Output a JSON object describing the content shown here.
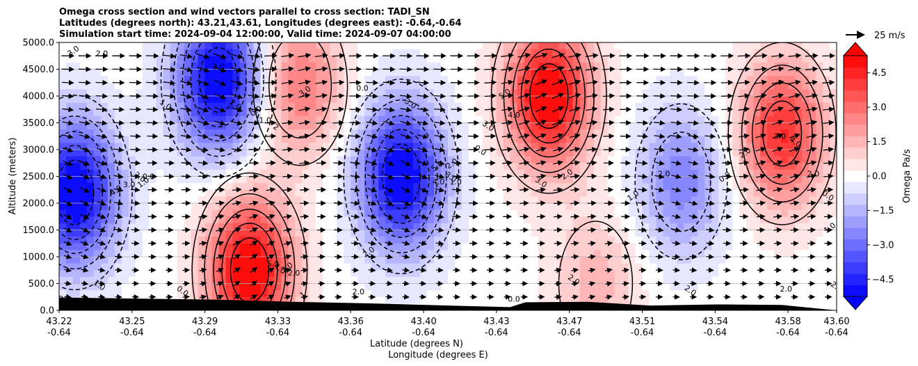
{
  "chart_data": {
    "type": "heatmap",
    "title_lines": [
      "Omega cross section and wind vectors parallel to cross section: TADI_SN",
      "Latitudes (degrees north): 43.21,43.61, Longitudes (degrees east): -0.64,-0.64",
      "Simulation start time: 2024-09-04 12:00:00, Valid time: 2024-09-07 04:00:00"
    ],
    "xlabel_lines": [
      "Latitude (degrees N)",
      "Longitude (degrees E)"
    ],
    "ylabel": "Altitude (meters)",
    "x_ticks": [
      {
        "lat": "43.22",
        "lon": "-0.64"
      },
      {
        "lat": "43.25",
        "lon": "-0.64"
      },
      {
        "lat": "43.29",
        "lon": "-0.64"
      },
      {
        "lat": "43.33",
        "lon": "-0.64"
      },
      {
        "lat": "43.36",
        "lon": "-0.64"
      },
      {
        "lat": "43.40",
        "lon": "-0.64"
      },
      {
        "lat": "43.43",
        "lon": "-0.64"
      },
      {
        "lat": "43.47",
        "lon": "-0.64"
      },
      {
        "lat": "43.51",
        "lon": "-0.64"
      },
      {
        "lat": "43.54",
        "lon": "-0.64"
      },
      {
        "lat": "43.58",
        "lon": "-0.64"
      },
      {
        "lat": "43.60",
        "lon": "-0.64"
      }
    ],
    "x_tick_fractions": [
      0,
      0.0938,
      0.1875,
      0.2813,
      0.375,
      0.4688,
      0.5625,
      0.6563,
      0.75,
      0.8438,
      0.9375,
      1.0
    ],
    "y_ticks": [
      "0.0",
      "500.0",
      "1000.0",
      "1500.0",
      "2000.0",
      "2500.0",
      "3000.0",
      "3500.0",
      "4000.0",
      "4500.0",
      "5000.0"
    ],
    "ylim": [
      0,
      5000
    ],
    "grid": "horizontal",
    "colorbar": {
      "label": "Omega Pa/s",
      "range": [
        -5.25,
        5.25
      ],
      "ticks": [
        "4.5",
        "3.0",
        "1.5",
        "0.0",
        "−1.5",
        "−3.0",
        "−4.5"
      ],
      "tick_values": [
        4.5,
        3.0,
        1.5,
        0.0,
        -1.5,
        -3.0,
        -4.5
      ],
      "extend": "both",
      "negative_color": "#0000ff",
      "positive_color": "#ff0000"
    },
    "quiver_key": {
      "label": "25 m/s",
      "speed_ms": 25
    },
    "omega_features": [
      {
        "sign": "negative",
        "center_frac": 0.02,
        "center_alt": 2200,
        "peak": -5.5
      },
      {
        "sign": "negative",
        "center_frac": 0.205,
        "center_alt": 4300,
        "peak": -5.5
      },
      {
        "sign": "negative",
        "center_frac": 0.44,
        "center_alt": 2500,
        "peak": -5.5
      },
      {
        "sign": "negative",
        "center_frac": 0.8,
        "center_alt": 2400,
        "peak": -2.6
      },
      {
        "sign": "positive",
        "center_frac": 0.245,
        "center_alt": 750,
        "peak": 5.5
      },
      {
        "sign": "positive",
        "center_frac": 0.31,
        "center_alt": 4200,
        "peak": 2.8
      },
      {
        "sign": "positive",
        "center_frac": 0.63,
        "center_alt": 4000,
        "peak": 5.5
      },
      {
        "sign": "positive",
        "center_frac": 0.69,
        "center_alt": 500,
        "peak": 1.5
      },
      {
        "sign": "positive",
        "center_frac": 0.93,
        "center_alt": 3300,
        "peak": 4.3
      }
    ],
    "contour_labels": [
      {
        "text": "3.0",
        "frac": 0.02,
        "alt": 4800
      },
      {
        "text": "2.0",
        "frac": 0.055,
        "alt": 4750
      },
      {
        "text": "1.0",
        "frac": 0.135,
        "alt": 3800
      },
      {
        "text": "4.0",
        "frac": 0.075,
        "alt": 2200
      },
      {
        "text": "3.0",
        "frac": 0.09,
        "alt": 2300
      },
      {
        "text": "2.0",
        "frac": 0.102,
        "alt": 2450
      },
      {
        "text": "1.0",
        "frac": 0.11,
        "alt": 2350
      },
      {
        "text": "0.0",
        "frac": 0.115,
        "alt": 2450
      },
      {
        "text": "1.0",
        "frac": 0.05,
        "alt": 430
      },
      {
        "text": "0",
        "frac": 0.005,
        "alt": 180
      },
      {
        "text": "3.0",
        "frac": 0.205,
        "alt": 4500
      },
      {
        "text": "2.0",
        "frac": 0.225,
        "alt": 3800
      },
      {
        "text": "0.0",
        "frac": 0.255,
        "alt": 3680
      },
      {
        "text": "1.0",
        "frac": 0.265,
        "alt": 3500
      },
      {
        "text": "2",
        "frac": 0.277,
        "alt": 3380
      },
      {
        "text": "3.0",
        "frac": 0.318,
        "alt": 4050
      },
      {
        "text": "5.0",
        "frac": 0.275,
        "alt": 820
      },
      {
        "text": "4.0",
        "frac": 0.282,
        "alt": 740
      },
      {
        "text": "3.0",
        "frac": 0.295,
        "alt": 760
      },
      {
        "text": "2.0",
        "frac": 0.302,
        "alt": 650
      },
      {
        "text": "0.0",
        "frac": 0.157,
        "alt": 320
      },
      {
        "text": "1",
        "frac": 0.315,
        "alt": 250
      },
      {
        "text": "0.0",
        "frac": 0.39,
        "alt": 4100
      },
      {
        "text": "3.0",
        "frac": 0.45,
        "alt": 3820
      },
      {
        "text": "5.0",
        "frac": 0.488,
        "alt": 2650
      },
      {
        "text": "4.0",
        "frac": 0.488,
        "alt": 2350
      },
      {
        "text": "3.0",
        "frac": 0.502,
        "alt": 2450
      },
      {
        "text": "2.0",
        "frac": 0.507,
        "alt": 2700
      },
      {
        "text": "1.0",
        "frac": 0.51,
        "alt": 2350
      },
      {
        "text": "0.0",
        "frac": 0.54,
        "alt": 2950
      },
      {
        "text": "2.0",
        "frac": 0.4,
        "alt": 1050
      },
      {
        "text": "2.0",
        "frac": 0.385,
        "alt": 300
      },
      {
        "text": "3.0",
        "frac": 0.55,
        "alt": 3400
      },
      {
        "text": "5.0",
        "frac": 0.575,
        "alt": 4000
      },
      {
        "text": "4.0",
        "frac": 0.585,
        "alt": 3600
      },
      {
        "text": "3.0",
        "frac": 0.618,
        "alt": 2350
      },
      {
        "text": "2.0",
        "frac": 0.655,
        "alt": 2500
      },
      {
        "text": "0.0",
        "frac": 0.585,
        "alt": 160
      },
      {
        "text": "2.0",
        "frac": 0.66,
        "alt": 530
      },
      {
        "text": "1.0",
        "frac": 0.74,
        "alt": 2100
      },
      {
        "text": "2.0",
        "frac": 0.778,
        "alt": 2500
      },
      {
        "text": "2.0",
        "frac": 0.81,
        "alt": 330
      },
      {
        "text": "0.0",
        "frac": 0.858,
        "alt": 2450
      },
      {
        "text": "3.0",
        "frac": 0.927,
        "alt": 3200
      },
      {
        "text": "4.0",
        "frac": 0.945,
        "alt": 3100
      },
      {
        "text": "2.0",
        "frac": 0.884,
        "alt": 2900
      },
      {
        "text": "2.0",
        "frac": 0.97,
        "alt": 2500
      },
      {
        "text": "0.0",
        "frac": 0.987,
        "alt": 2100
      },
      {
        "text": "1.0",
        "frac": 0.993,
        "alt": 1500
      },
      {
        "text": "2.0",
        "frac": 0.935,
        "alt": 350
      },
      {
        "text": "2.0",
        "frac": 0.998,
        "alt": 400
      }
    ]
  }
}
